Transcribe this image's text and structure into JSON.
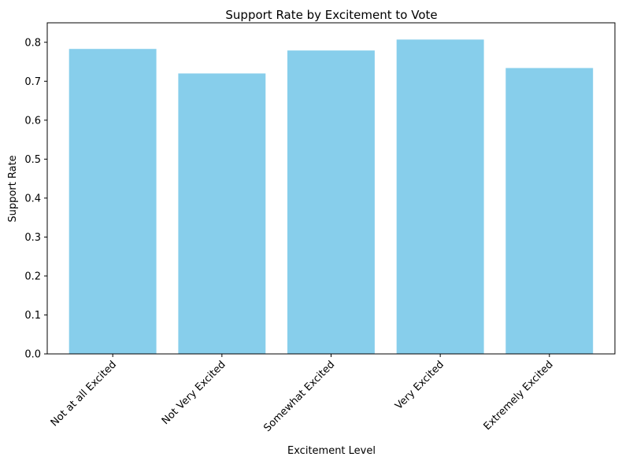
{
  "chart_data": {
    "type": "bar",
    "title": "Support Rate by Excitement to Vote",
    "xlabel": "Excitement Level",
    "ylabel": "Support Rate",
    "categories": [
      "Not at all Excited",
      "Not Very Excited",
      "Somewhat Excited",
      "Very Excited",
      "Extremely Excited"
    ],
    "values": [
      0.783,
      0.72,
      0.779,
      0.807,
      0.734
    ],
    "ylim": [
      0,
      0.85
    ],
    "yticks": [
      "0.0",
      "0.1",
      "0.2",
      "0.3",
      "0.4",
      "0.5",
      "0.6",
      "0.7",
      "0.8"
    ],
    "bar_color": "#87CEEB",
    "grid": false
  }
}
